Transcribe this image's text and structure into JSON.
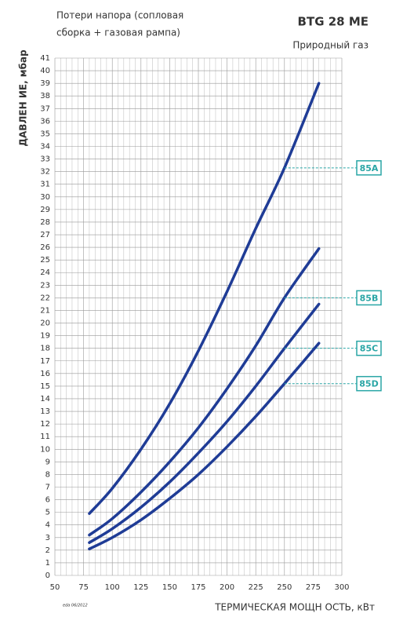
{
  "chart_data": {
    "type": "line",
    "title": "BTG 28 ME",
    "fuel": "Природный газ",
    "subtitle": [
      "Потери напора (сопловая",
      "сборка + газовая рампа)"
    ],
    "y_label": "ДАВЛЕН ИЕ, мбар",
    "x_label": "ТЕРМИЧЕСКАЯ МОЩН ОСТЬ, кВт",
    "footnote": "eda 06/2012",
    "x": [
      80,
      100,
      125,
      150,
      175,
      200,
      225,
      250,
      280
    ],
    "series": [
      {
        "name": "85A",
        "color": "#1f3c96",
        "values": [
          4.9,
          6.9,
          10,
          13.6,
          17.8,
          22.5,
          27.5,
          32.3,
          39
        ]
      },
      {
        "name": "85B",
        "color": "#1f3c96",
        "values": [
          3.2,
          4.5,
          6.6,
          9,
          11.7,
          14.8,
          18.2,
          22,
          25.9
        ]
      },
      {
        "name": "85C",
        "color": "#1f3c96",
        "values": [
          2.6,
          3.7,
          5.4,
          7.4,
          9.7,
          12.2,
          15,
          18,
          21.5
        ]
      },
      {
        "name": "85D",
        "color": "#1f3c96",
        "values": [
          2.1,
          3,
          4.4,
          6.1,
          8,
          10.2,
          12.6,
          15.2,
          18.4
        ]
      }
    ],
    "label_color": "#2aa6a6",
    "xlim": [
      50,
      300
    ],
    "xticks": [
      50,
      75,
      100,
      125,
      150,
      175,
      200,
      225,
      250,
      275,
      300
    ],
    "ylim": [
      0,
      41
    ],
    "yticks": [
      0,
      1,
      2,
      3,
      4,
      5,
      6,
      7,
      8,
      9,
      10,
      11,
      12,
      13,
      14,
      15,
      16,
      17,
      18,
      19,
      20,
      21,
      22,
      23,
      24,
      25,
      26,
      27,
      28,
      29,
      30,
      31,
      32,
      33,
      34,
      35,
      36,
      37,
      38,
      39,
      40,
      41
    ],
    "grid": true
  }
}
